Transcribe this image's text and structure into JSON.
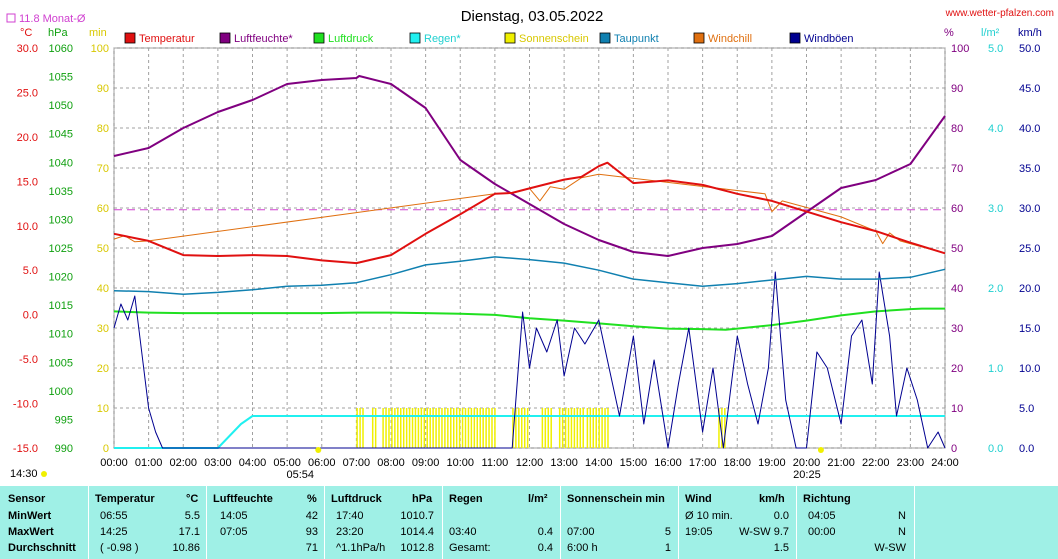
{
  "title": "Dienstag, 03.05.2022",
  "site": "www.wetter-pfalzen.com",
  "top_left_label": "11.8 Monat-Ø",
  "unit_labels": {
    "temp": "°C",
    "press": "hPa",
    "min": "min",
    "pct": "%",
    "rain": "l/m²",
    "wind": "km/h"
  },
  "legend": [
    {
      "name": "Temperatur",
      "color": "#e01010"
    },
    {
      "name": "Luftfeuchte*",
      "color": "#800080"
    },
    {
      "name": "Luftdruck",
      "color": "#20e020"
    },
    {
      "name": "Regen*",
      "color": "#20f0f0"
    },
    {
      "name": "Sonnenschein",
      "color": "#f0f000"
    },
    {
      "name": "Taupunkt",
      "color": "#1080b0"
    },
    {
      "name": "Windchill",
      "color": "#e07010"
    },
    {
      "name": "Windböen",
      "color": "#000090"
    }
  ],
  "sunrise": "05:54",
  "sunset": "20:25",
  "current_time": "14:30",
  "chart_data": {
    "type": "line",
    "title": "Dienstag, 03.05.2022",
    "x_ticks": [
      "00:00",
      "01:00",
      "02:00",
      "03:00",
      "04:00",
      "05:00",
      "06:00",
      "07:00",
      "08:00",
      "09:00",
      "10:00",
      "11:00",
      "12:00",
      "13:00",
      "14:00",
      "15:00",
      "16:00",
      "17:00",
      "18:00",
      "19:00",
      "20:00",
      "21:00",
      "22:00",
      "23:00",
      "24:00"
    ],
    "axes": {
      "temp": {
        "ticks": [
          "30.0",
          "25.0",
          "20.0",
          "15.0",
          "10.0",
          "5.0",
          "0.0",
          "-5.0",
          "-10.0",
          "-15.0"
        ],
        "ylim": [
          -15,
          30
        ]
      },
      "press": {
        "ticks": [
          "1060",
          "1055",
          "1050",
          "1045",
          "1040",
          "1035",
          "1030",
          "1025",
          "1020",
          "1015",
          "1010",
          "1005",
          "1000",
          "995",
          "990"
        ],
        "ylim": [
          990,
          1060
        ]
      },
      "min": {
        "ticks": [
          "100",
          "90",
          "80",
          "70",
          "60",
          "50",
          "40",
          "30",
          "20",
          "10",
          "0"
        ],
        "ylim": [
          0,
          100
        ]
      },
      "pct": {
        "ticks": [
          "100",
          "90",
          "80",
          "70",
          "60",
          "50",
          "40",
          "30",
          "20",
          "10",
          "0"
        ],
        "ylim": [
          0,
          100
        ]
      },
      "rain": {
        "ticks": [
          "5.0",
          "4.0",
          "3.0",
          "2.0",
          "1.0",
          "0.0"
        ],
        "ylim": [
          0,
          5
        ]
      },
      "wind": {
        "ticks": [
          "50.0",
          "45.0",
          "40.0",
          "35.0",
          "30.0",
          "25.0",
          "20.0",
          "15.0",
          "10.0",
          "5.0",
          "0.0"
        ],
        "ylim": [
          0,
          50
        ]
      }
    },
    "monthly_avg_temp": 11.8,
    "series": [
      {
        "name": "Temperatur",
        "axis": "temp",
        "x": [
          0,
          1,
          2,
          3,
          4,
          5,
          6,
          7,
          8,
          9,
          10,
          11,
          11.5,
          12,
          12.5,
          13,
          13.5,
          14,
          14.25,
          15,
          16,
          17,
          18,
          19,
          20,
          21,
          22,
          23,
          24
        ],
        "y": [
          9.1,
          8.3,
          6.7,
          6.6,
          6.7,
          6.6,
          6.1,
          5.8,
          6.7,
          9.1,
          11.3,
          13.6,
          13.7,
          14.2,
          14.7,
          15.2,
          15.5,
          16.7,
          17.1,
          14.8,
          15.1,
          14.6,
          13.6,
          12.8,
          11.6,
          10.4,
          9.4,
          8.1,
          6.9
        ]
      },
      {
        "name": "Luftfeuchte*",
        "axis": "pct",
        "x": [
          0,
          1,
          2,
          3,
          4,
          5,
          6,
          7,
          7.083,
          8,
          9,
          10,
          11,
          12,
          13,
          14,
          15,
          16,
          17,
          18,
          19,
          20,
          21,
          22,
          23,
          24
        ],
        "y": [
          73,
          75,
          80,
          84,
          87,
          91,
          92,
          92.5,
          93,
          91,
          85,
          72,
          66,
          61,
          56,
          52,
          49,
          48,
          50,
          51,
          53,
          59,
          65,
          67,
          71,
          83
        ]
      },
      {
        "name": "Luftdruck",
        "axis": "press",
        "x": [
          0,
          1,
          2,
          3,
          4,
          5,
          6,
          7,
          8,
          9,
          10,
          11,
          12,
          13,
          14,
          15,
          16,
          17,
          17.667,
          18,
          19,
          20,
          21,
          22,
          23,
          23.333,
          24
        ],
        "y": [
          1013.9,
          1013.7,
          1013.6,
          1013.6,
          1013.6,
          1013.6,
          1013.6,
          1013.7,
          1013.7,
          1013.6,
          1013.5,
          1013.3,
          1012.7,
          1012.3,
          1011.8,
          1011.3,
          1010.9,
          1010.8,
          1010.7,
          1010.9,
          1011.5,
          1012.3,
          1013.2,
          1013.9,
          1014.3,
          1014.4,
          1014.4
        ]
      },
      {
        "name": "Regen*",
        "axis": "rain",
        "x": [
          0,
          3,
          3.667,
          4,
          5,
          10,
          15,
          20,
          24
        ],
        "y": [
          0,
          0,
          0.3,
          0.4,
          0.4,
          0.4,
          0.4,
          0.4,
          0.4
        ]
      },
      {
        "name": "Taupunkt",
        "axis": "temp",
        "x": [
          0,
          1,
          2,
          3,
          4,
          5,
          6,
          7,
          8,
          9,
          10,
          11,
          12,
          13,
          14,
          15,
          16,
          17,
          18,
          19,
          20,
          21,
          22,
          23,
          24
        ],
        "y": [
          2.7,
          2.6,
          2.3,
          2.5,
          2.8,
          3.2,
          3.3,
          3.6,
          4.5,
          5.6,
          6.0,
          6.5,
          6.2,
          5.8,
          5.0,
          4.0,
          3.6,
          3.2,
          3.5,
          3.9,
          4.3,
          4.0,
          4.0,
          4.2,
          5.1
        ]
      },
      {
        "name": "Windchill",
        "axis": "temp",
        "x": [
          0,
          0.3,
          0.6,
          1,
          11,
          11.5,
          12,
          12.3,
          12.6,
          13,
          13.5,
          14,
          18.8,
          19,
          19.3,
          21,
          22,
          22.2,
          22.4,
          22.7,
          24
        ],
        "y": [
          8.5,
          8.9,
          8.2,
          8.3,
          13.6,
          13.7,
          14.2,
          12.8,
          14.4,
          14.1,
          15.4,
          15.8,
          13.6,
          11.6,
          12.8,
          11.0,
          9.4,
          8.0,
          9.2,
          8.3,
          6.9
        ]
      },
      {
        "name": "Windböen",
        "axis": "wind",
        "x": [
          0,
          0.2,
          0.4,
          0.6,
          0.8,
          1,
          1.2,
          1.4,
          1.6,
          1.8,
          2,
          11.5,
          11.8,
          12,
          12.2,
          12.5,
          12.8,
          13,
          13.3,
          13.6,
          14,
          14.3,
          14.6,
          15,
          15.3,
          15.6,
          16,
          16.3,
          16.6,
          17,
          17.3,
          17.6,
          18,
          18.3,
          18.6,
          18.9,
          19.1,
          19.4,
          19.7,
          20,
          20.3,
          20.6,
          21,
          21.3,
          21.6,
          21.9,
          22.1,
          22.4,
          22.6,
          22.9,
          23.2,
          23.5,
          23.8,
          24
        ],
        "y": [
          15,
          18,
          16,
          19,
          12,
          5,
          2,
          0,
          0,
          0,
          0,
          0,
          17,
          10,
          15,
          12,
          16,
          9,
          15,
          13,
          16,
          10,
          4,
          14,
          3,
          11,
          0,
          8,
          15,
          2,
          10,
          0,
          14,
          8,
          3,
          10,
          22,
          6,
          0,
          0,
          12,
          10,
          3,
          14,
          16,
          8,
          22,
          14,
          4,
          10,
          6,
          0,
          2,
          0
        ]
      },
      {
        "name": "Sonnenschein",
        "axis": "min",
        "intervals": [
          [
            7.0,
            7.25
          ],
          [
            7.45,
            7.55
          ],
          [
            7.75,
            11.05
          ],
          [
            11.5,
            11.95
          ],
          [
            12.35,
            12.65
          ],
          [
            12.85,
            13.55
          ],
          [
            13.65,
            14.3
          ],
          [
            17.45,
            17.65
          ]
        ]
      }
    ]
  },
  "table": {
    "headers": {
      "sensor": "Sensor",
      "temp": "Temperatur",
      "temp_unit": "°C",
      "hum": "Luftfeuchte",
      "hum_unit": "%",
      "press": "Luftdruck",
      "press_unit": "hPa",
      "rain": "Regen",
      "rain_unit": "l/m²",
      "sun": "Sonnenschein min",
      "wind": "Wind",
      "wind_unit": "km/h",
      "dir": "Richtung"
    },
    "rows": [
      {
        "label": "MinWert",
        "temp_time": "06:55",
        "temp_val": "5.5",
        "hum_time": "14:05",
        "hum_val": "42",
        "press_time": "17:40",
        "press_val": "1010.7",
        "rain_time": "",
        "rain_val": "",
        "sun_time": "",
        "sun_val": "",
        "wind_time": "Ø 10 min.",
        "wind_val": "0.0",
        "dir_time": "04:05",
        "dir_val": "N"
      },
      {
        "label": "MaxWert",
        "temp_time": "14:25",
        "temp_val": "17.1",
        "hum_time": "07:05",
        "hum_val": "93",
        "press_time": "23:20",
        "press_val": "1014.4",
        "rain_time": "03:40",
        "rain_val": "0.4",
        "sun_time": "07:00",
        "sun_val": "5",
        "wind_time": "19:05",
        "wind_val": "W-SW 9.7",
        "dir_time": "00:00",
        "dir_val": "N"
      },
      {
        "label": "Durchschnitt",
        "temp_time": "( -0.98 )",
        "temp_val": "10.86",
        "hum_time": "",
        "hum_val": "71",
        "press_time": "^1.1hPa/h",
        "press_val": "1012.8",
        "rain_time": "Gesamt:",
        "rain_val": "0.4",
        "sun_time": "6:00 h",
        "sun_val": "1",
        "wind_time": "",
        "wind_val": "1.5",
        "dir_time": "",
        "dir_val": "W-SW"
      }
    ]
  }
}
